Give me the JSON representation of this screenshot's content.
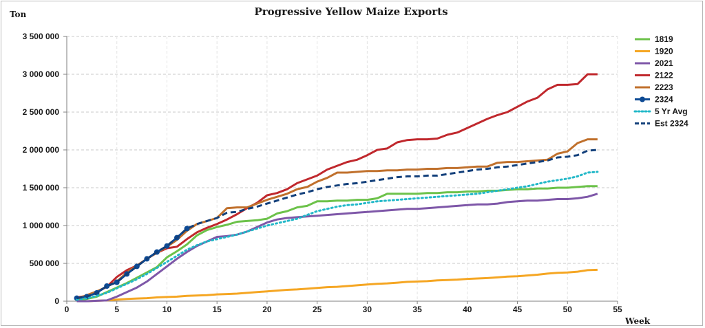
{
  "chart_data": {
    "type": "line",
    "title": "Progressive Yellow Maize Exports",
    "ylabel": "Ton",
    "xlabel": "Week",
    "xlim": [
      0,
      55
    ],
    "ylim": [
      0,
      3500000
    ],
    "xticks": [
      "0",
      "5",
      "10",
      "15",
      "20",
      "25",
      "30",
      "35",
      "40",
      "45",
      "50",
      "55"
    ],
    "yticks": [
      "0",
      "500 000",
      "1 000 000",
      "1 500 000",
      "2 000 000",
      "2 500 000",
      "3 000 000",
      "3 500 000"
    ],
    "grid": "horizontal dashed",
    "legend_position": "right",
    "series": [
      {
        "name": "1819",
        "color": "#6cc24a",
        "style": "solid",
        "x": [
          1,
          2,
          3,
          4,
          5,
          6,
          7,
          8,
          9,
          10,
          11,
          12,
          13,
          14,
          15,
          16,
          17,
          18,
          19,
          20,
          21,
          22,
          23,
          24,
          25,
          26,
          27,
          28,
          29,
          30,
          31,
          32,
          33,
          34,
          35,
          36,
          37,
          38,
          39,
          40,
          41,
          42,
          43,
          44,
          45,
          46,
          47,
          48,
          49,
          50,
          51,
          52,
          53
        ],
        "y": [
          10000,
          30000,
          60000,
          120000,
          180000,
          240000,
          310000,
          380000,
          450000,
          580000,
          660000,
          750000,
          870000,
          940000,
          980000,
          1010000,
          1050000,
          1060000,
          1070000,
          1090000,
          1160000,
          1190000,
          1240000,
          1260000,
          1320000,
          1320000,
          1330000,
          1330000,
          1340000,
          1340000,
          1360000,
          1420000,
          1420000,
          1420000,
          1420000,
          1430000,
          1430000,
          1440000,
          1440000,
          1450000,
          1450000,
          1460000,
          1460000,
          1470000,
          1480000,
          1480000,
          1490000,
          1490000,
          1500000,
          1500000,
          1510000,
          1520000,
          1520000
        ]
      },
      {
        "name": "1920",
        "color": "#f5a623",
        "style": "solid",
        "x": [
          1,
          2,
          3,
          4,
          5,
          6,
          7,
          8,
          9,
          10,
          11,
          12,
          13,
          14,
          15,
          16,
          17,
          18,
          19,
          20,
          21,
          22,
          23,
          24,
          25,
          26,
          27,
          28,
          29,
          30,
          31,
          32,
          33,
          34,
          35,
          36,
          37,
          38,
          39,
          40,
          41,
          42,
          43,
          44,
          45,
          46,
          47,
          48,
          49,
          50,
          51,
          52,
          53
        ],
        "y": [
          0,
          0,
          5000,
          10000,
          20000,
          30000,
          35000,
          40000,
          50000,
          55000,
          60000,
          70000,
          75000,
          80000,
          90000,
          95000,
          100000,
          110000,
          120000,
          130000,
          140000,
          150000,
          155000,
          165000,
          175000,
          185000,
          190000,
          200000,
          210000,
          220000,
          230000,
          235000,
          245000,
          255000,
          260000,
          265000,
          275000,
          280000,
          285000,
          295000,
          300000,
          305000,
          315000,
          325000,
          330000,
          340000,
          350000,
          365000,
          375000,
          380000,
          390000,
          410000,
          415000
        ]
      },
      {
        "name": "2021",
        "color": "#7e57a8",
        "style": "solid",
        "x": [
          1,
          2,
          3,
          4,
          5,
          6,
          7,
          8,
          9,
          10,
          11,
          12,
          13,
          14,
          15,
          16,
          17,
          18,
          19,
          20,
          21,
          22,
          23,
          24,
          25,
          26,
          27,
          28,
          29,
          30,
          31,
          32,
          33,
          34,
          35,
          36,
          37,
          38,
          39,
          40,
          41,
          42,
          43,
          44,
          45,
          46,
          47,
          48,
          49,
          50,
          51,
          52,
          53
        ],
        "y": [
          0,
          0,
          5000,
          10000,
          60000,
          120000,
          180000,
          260000,
          360000,
          460000,
          560000,
          650000,
          730000,
          790000,
          850000,
          860000,
          880000,
          920000,
          980000,
          1040000,
          1080000,
          1100000,
          1110000,
          1120000,
          1130000,
          1140000,
          1150000,
          1160000,
          1170000,
          1180000,
          1190000,
          1200000,
          1210000,
          1220000,
          1220000,
          1230000,
          1240000,
          1250000,
          1260000,
          1270000,
          1280000,
          1280000,
          1290000,
          1310000,
          1320000,
          1330000,
          1330000,
          1340000,
          1350000,
          1350000,
          1360000,
          1380000,
          1420000
        ]
      },
      {
        "name": "2122",
        "color": "#c0282d",
        "style": "solid",
        "x": [
          1,
          2,
          3,
          4,
          5,
          6,
          7,
          8,
          9,
          10,
          11,
          12,
          13,
          14,
          15,
          16,
          17,
          18,
          19,
          20,
          21,
          22,
          23,
          24,
          25,
          26,
          27,
          28,
          29,
          30,
          31,
          32,
          33,
          34,
          35,
          36,
          37,
          38,
          39,
          40,
          41,
          42,
          43,
          44,
          45,
          46,
          47,
          48,
          49,
          50,
          51,
          52,
          53
        ],
        "y": [
          50000,
          70000,
          120000,
          190000,
          320000,
          410000,
          470000,
          560000,
          640000,
          700000,
          720000,
          820000,
          910000,
          970000,
          1020000,
          1080000,
          1150000,
          1230000,
          1300000,
          1400000,
          1430000,
          1480000,
          1560000,
          1610000,
          1660000,
          1740000,
          1790000,
          1840000,
          1870000,
          1930000,
          2000000,
          2020000,
          2100000,
          2130000,
          2140000,
          2140000,
          2150000,
          2200000,
          2230000,
          2290000,
          2350000,
          2410000,
          2460000,
          2500000,
          2570000,
          2640000,
          2690000,
          2800000,
          2860000,
          2860000,
          2870000,
          3000000,
          3000000
        ]
      },
      {
        "name": "2223",
        "color": "#c0702c",
        "style": "solid",
        "x": [
          1,
          2,
          3,
          4,
          5,
          6,
          7,
          8,
          9,
          10,
          11,
          12,
          13,
          14,
          15,
          16,
          17,
          18,
          19,
          20,
          21,
          22,
          23,
          24,
          25,
          26,
          27,
          28,
          29,
          30,
          31,
          32,
          33,
          34,
          35,
          36,
          37,
          38,
          39,
          40,
          41,
          42,
          43,
          44,
          45,
          46,
          47,
          48,
          49,
          50,
          51,
          52,
          53
        ],
        "y": [
          30000,
          80000,
          130000,
          190000,
          260000,
          380000,
          470000,
          560000,
          640000,
          720000,
          810000,
          930000,
          1020000,
          1060000,
          1100000,
          1230000,
          1240000,
          1240000,
          1290000,
          1340000,
          1380000,
          1420000,
          1480000,
          1510000,
          1580000,
          1630000,
          1700000,
          1700000,
          1710000,
          1720000,
          1720000,
          1730000,
          1730000,
          1740000,
          1740000,
          1750000,
          1750000,
          1760000,
          1760000,
          1770000,
          1780000,
          1780000,
          1830000,
          1840000,
          1840000,
          1850000,
          1860000,
          1870000,
          1950000,
          1980000,
          2090000,
          2140000,
          2140000
        ]
      },
      {
        "name": "2324",
        "color": "#0d4a94",
        "style": "solid-markers",
        "x": [
          1,
          2,
          3,
          4,
          5,
          6,
          7,
          8,
          9,
          10,
          11,
          12
        ],
        "y": [
          40000,
          60000,
          110000,
          200000,
          250000,
          360000,
          460000,
          560000,
          650000,
          730000,
          840000,
          960000
        ]
      },
      {
        "name": "5 Yr Avg",
        "color": "#22b8c8",
        "style": "dotted",
        "x": [
          1,
          2,
          3,
          4,
          5,
          6,
          7,
          8,
          9,
          10,
          11,
          12,
          13,
          14,
          15,
          16,
          17,
          18,
          19,
          20,
          21,
          22,
          23,
          24,
          25,
          26,
          27,
          28,
          29,
          30,
          31,
          32,
          33,
          34,
          35,
          36,
          37,
          38,
          39,
          40,
          41,
          42,
          43,
          44,
          45,
          46,
          47,
          48,
          49,
          50,
          51,
          52,
          53
        ],
        "y": [
          20000,
          40000,
          70000,
          110000,
          170000,
          230000,
          290000,
          360000,
          440000,
          520000,
          600000,
          680000,
          740000,
          790000,
          820000,
          850000,
          880000,
          920000,
          960000,
          1000000,
          1030000,
          1060000,
          1090000,
          1140000,
          1190000,
          1220000,
          1250000,
          1270000,
          1280000,
          1300000,
          1320000,
          1330000,
          1340000,
          1350000,
          1360000,
          1370000,
          1380000,
          1390000,
          1400000,
          1410000,
          1420000,
          1440000,
          1460000,
          1480000,
          1500000,
          1520000,
          1550000,
          1580000,
          1600000,
          1620000,
          1650000,
          1700000,
          1710000
        ]
      },
      {
        "name": "Est 2324",
        "color": "#123f7a",
        "style": "dashed",
        "x": [
          1,
          2,
          3,
          4,
          5,
          6,
          7,
          8,
          9,
          10,
          11,
          12,
          13,
          14,
          15,
          16,
          17,
          18,
          19,
          20,
          21,
          22,
          23,
          24,
          25,
          26,
          27,
          28,
          29,
          30,
          31,
          32,
          33,
          34,
          35,
          36,
          37,
          38,
          39,
          40,
          41,
          42,
          43,
          44,
          45,
          46,
          47,
          48,
          49,
          50,
          51,
          52,
          53
        ],
        "y": [
          40000,
          60000,
          110000,
          200000,
          250000,
          360000,
          460000,
          560000,
          650000,
          730000,
          840000,
          960000,
          1020000,
          1060000,
          1100000,
          1170000,
          1180000,
          1220000,
          1250000,
          1290000,
          1330000,
          1370000,
          1410000,
          1440000,
          1480000,
          1510000,
          1530000,
          1550000,
          1560000,
          1580000,
          1600000,
          1620000,
          1640000,
          1650000,
          1650000,
          1660000,
          1660000,
          1680000,
          1700000,
          1720000,
          1740000,
          1750000,
          1770000,
          1780000,
          1800000,
          1820000,
          1840000,
          1860000,
          1900000,
          1910000,
          1930000,
          1990000,
          2000000
        ]
      }
    ]
  }
}
